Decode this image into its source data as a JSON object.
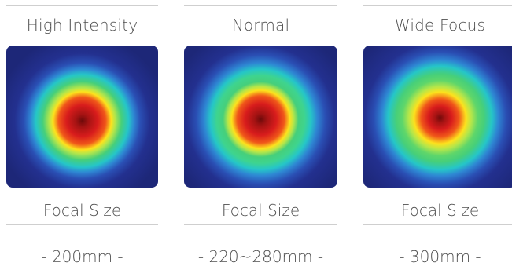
{
  "modes": [
    {
      "title": "High Intensity",
      "focal_label": "Focal Size",
      "focal_value": "- 200mm -"
    },
    {
      "title": "Normal",
      "focal_label": "Focal Size",
      "focal_value": "- 220~280mm -"
    },
    {
      "title": "Wide Focus",
      "focal_label": "Focal Size",
      "focal_value": "- 300mm -"
    }
  ],
  "beam_image_names": [
    "high-intensity-beam-heatmap",
    "normal-beam-heatmap",
    "wide-focus-beam-heatmap"
  ]
}
